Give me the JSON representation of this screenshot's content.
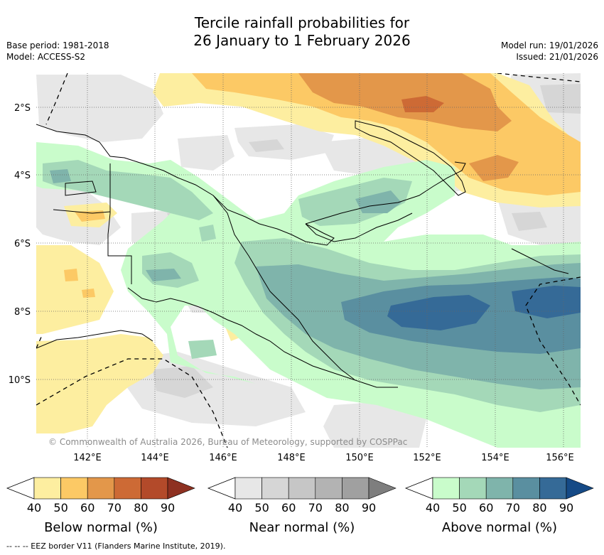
{
  "title": {
    "line1": "Tercile rainfall probabilities for",
    "line2": "26 January to 1 February 2026"
  },
  "meta_left": {
    "base_period": "Base period: 1981-2018",
    "model": "Model: ACCESS-S2"
  },
  "meta_right": {
    "model_run": "Model run: 19/01/2026",
    "issued": "Issued: 21/01/2026"
  },
  "map": {
    "copyright": "© Commonwealth of Australia 2026, Bureau of Meteorology, supported by COSPPac",
    "lat_labels": [
      "2°S",
      "4°S",
      "6°S",
      "8°S",
      "10°S"
    ],
    "lon_labels": [
      "142°E",
      "144°E",
      "146°E",
      "148°E",
      "150°E",
      "152°E",
      "154°E",
      "156°E"
    ]
  },
  "colorbars": [
    {
      "label": "Below normal (%)",
      "ticks": [
        "40",
        "50",
        "60",
        "70",
        "80",
        "90"
      ],
      "colors": [
        "#fdeea0",
        "#fcc965",
        "#e3974a",
        "#cd6a35",
        "#b34a2a",
        "#8e3121"
      ]
    },
    {
      "label": "Near normal (%)",
      "ticks": [
        "40",
        "50",
        "60",
        "70",
        "80",
        "90"
      ],
      "colors": [
        "#e7e7e7",
        "#d6d6d6",
        "#c6c6c6",
        "#b3b3b3",
        "#a0a0a0",
        "#7e7e7e"
      ]
    },
    {
      "label": "Above normal (%)",
      "ticks": [
        "40",
        "50",
        "60",
        "70",
        "80",
        "90"
      ],
      "colors": [
        "#c9fccb",
        "#a4d8b8",
        "#7fb4ab",
        "#5a8fa0",
        "#356a97",
        "#154a86"
      ]
    }
  ],
  "footer": {
    "eez_note": "-- -- -- EEZ border V11 (Flanders Marine Institute, 2019)."
  }
}
